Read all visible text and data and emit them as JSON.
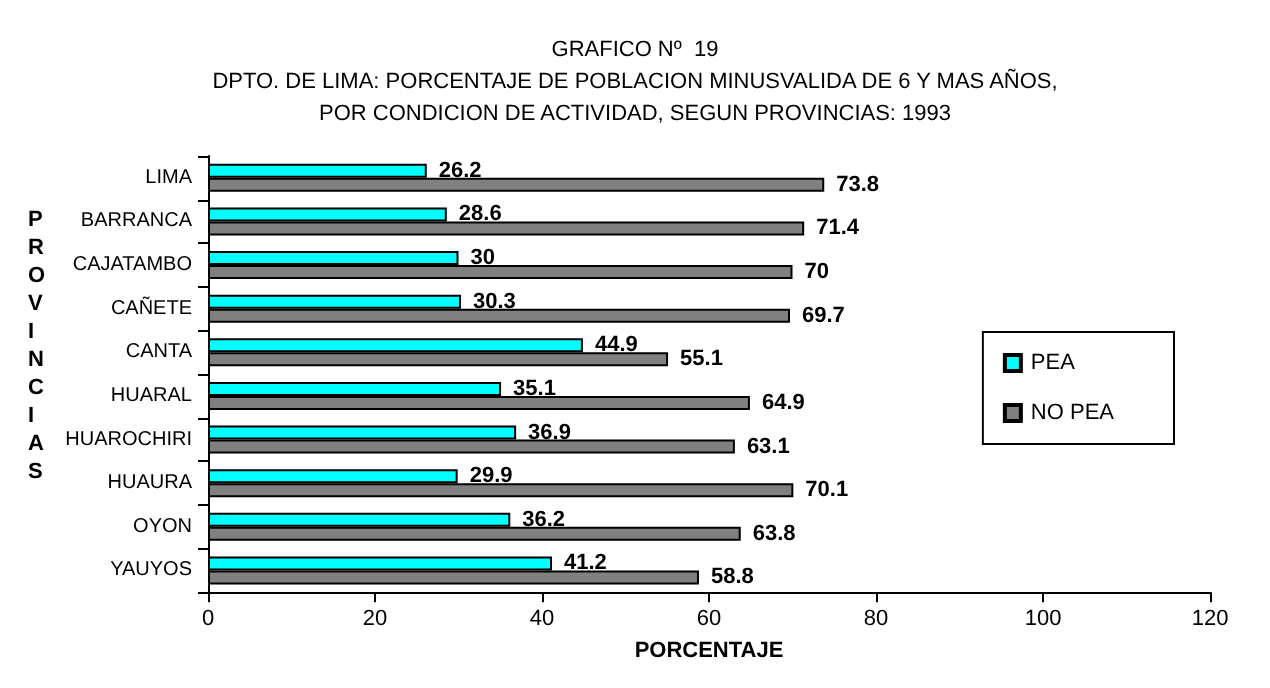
{
  "chart_data": {
    "type": "bar",
    "orientation": "horizontal",
    "title": "GRAFICO Nº  19",
    "subtitle": "DPTO. DE LIMA: PORCENTAJE DE POBLACION MINUSVALIDA DE 6 Y MAS AÑOS,\nPOR CONDICION DE ACTIVIDAD, SEGUN PROVINCIAS: 1993",
    "xlabel": "PORCENTAJE",
    "ylabel": "PROVINCIAS",
    "categories": [
      "LIMA",
      "BARRANCA",
      "CAJATAMBO",
      "CAÑETE",
      "CANTA",
      "HUARAL",
      "HUAROCHIRI",
      "HUAURA",
      "OYON",
      "YAUYOS"
    ],
    "series": [
      {
        "name": "PEA",
        "color": "#00ffff",
        "values": [
          26.2,
          28.6,
          30,
          30.3,
          44.9,
          35.1,
          36.9,
          29.9,
          36.2,
          41.2
        ]
      },
      {
        "name": "NO PEA",
        "color": "#808080",
        "values": [
          73.8,
          71.4,
          70,
          69.7,
          55.1,
          64.9,
          63.1,
          70.1,
          63.8,
          58.8
        ]
      }
    ],
    "xlim": [
      0,
      120
    ],
    "xticks": [
      0,
      20,
      40,
      60,
      80,
      100,
      120
    ],
    "data_labels": true,
    "legend": "right",
    "grid": false
  }
}
